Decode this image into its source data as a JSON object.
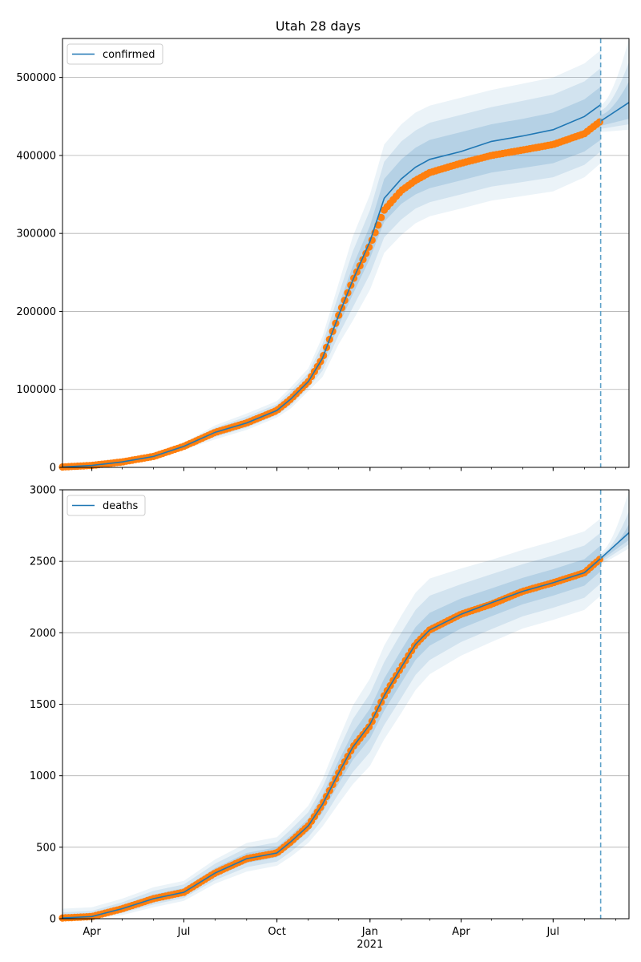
{
  "title": "Utah 28 days",
  "x_axis": {
    "ticks": [
      {
        "date": "2020-04-01",
        "label": "Apr",
        "sublabel": ""
      },
      {
        "date": "2020-07-01",
        "label": "Jul",
        "sublabel": ""
      },
      {
        "date": "2020-10-01",
        "label": "Oct",
        "sublabel": ""
      },
      {
        "date": "2021-01-01",
        "label": "Jan",
        "sublabel": "2021"
      },
      {
        "date": "2021-04-01",
        "label": "Apr",
        "sublabel": ""
      },
      {
        "date": "2021-07-01",
        "label": "Jul",
        "sublabel": ""
      }
    ],
    "range": [
      "2020-03-03",
      "2021-09-14"
    ],
    "forecast_start": "2021-08-17"
  },
  "colors": {
    "model_line": "#1f77b4",
    "band": "#1f77b4",
    "observed": "#ff7f0e",
    "forecast_marker": "#5fa2c9",
    "grid": "#b0b0b0"
  },
  "chart_data": [
    {
      "type": "line",
      "series_name": "confirmed",
      "ylim": [
        0,
        550000
      ],
      "yticks": [
        0,
        100000,
        200000,
        300000,
        400000,
        500000
      ],
      "grid": "horizontal",
      "legend_position": "upper-left",
      "model": {
        "x": [
          "2020-03-03",
          "2020-04-01",
          "2020-05-01",
          "2020-06-01",
          "2020-07-01",
          "2020-08-01",
          "2020-09-01",
          "2020-10-01",
          "2020-10-15",
          "2020-11-01",
          "2020-11-15",
          "2020-12-01",
          "2020-12-15",
          "2021-01-01",
          "2021-01-15",
          "2021-02-01",
          "2021-02-15",
          "2021-03-01",
          "2021-04-01",
          "2021-05-01",
          "2021-06-01",
          "2021-07-01",
          "2021-08-01",
          "2021-08-17"
        ],
        "y": [
          500,
          2500,
          7000,
          14000,
          27000,
          45000,
          57000,
          73000,
          88000,
          110000,
          140000,
          195000,
          240000,
          290000,
          345000,
          370000,
          385000,
          395000,
          405000,
          418000,
          425000,
          433000,
          450000,
          465000
        ]
      },
      "observed": {
        "x": [
          "2020-03-03",
          "2020-04-01",
          "2020-05-01",
          "2020-06-01",
          "2020-07-01",
          "2020-08-01",
          "2020-09-01",
          "2020-10-01",
          "2020-10-15",
          "2020-11-01",
          "2020-11-15",
          "2020-12-01",
          "2020-12-15",
          "2021-01-01",
          "2021-01-15",
          "2021-02-01",
          "2021-02-15",
          "2021-03-01",
          "2021-04-01",
          "2021-05-01",
          "2021-06-01",
          "2021-07-01",
          "2021-08-01",
          "2021-08-17"
        ],
        "y": [
          500,
          2500,
          7000,
          14000,
          27000,
          45000,
          57000,
          73000,
          88000,
          110000,
          140000,
          195000,
          240000,
          285000,
          330000,
          355000,
          368000,
          378000,
          390000,
          400000,
          407000,
          414000,
          428000,
          444000
        ]
      },
      "forecast": {
        "x": [
          "2021-08-17",
          "2021-09-14"
        ],
        "y": [
          444000,
          468000
        ],
        "bands": [
          {
            "lower": [
              438000,
              447000
            ],
            "upper": [
              452000,
              495000
            ]
          },
          {
            "lower": [
              434000,
              440000
            ],
            "upper": [
              458000,
              520000
            ]
          },
          {
            "lower": [
              430000,
              433000
            ],
            "upper": [
              465000,
              550000
            ]
          }
        ]
      },
      "bands": [
        {
          "lower": [
            400,
            2200,
            6500,
            13000,
            25500,
            42000,
            54000,
            70000,
            84000,
            106000,
            132000,
            182000,
            222000,
            268000,
            315000,
            338000,
            350000,
            358000,
            368000,
            378000,
            384000,
            390000,
            405000,
            420000
          ],
          "upper": [
            600,
            2800,
            7500,
            15000,
            28500,
            48000,
            61000,
            77000,
            93000,
            115000,
            148000,
            208000,
            258000,
            310000,
            370000,
            395000,
            410000,
            420000,
            430000,
            440000,
            447000,
            455000,
            472000,
            488000
          ]
        },
        {
          "lower": [
            300,
            1900,
            6000,
            12000,
            24000,
            39000,
            51000,
            67000,
            80000,
            102000,
            124000,
            170000,
            205000,
            248000,
            295000,
            318000,
            332000,
            340000,
            350000,
            360000,
            366000,
            372000,
            388000,
            405000
          ],
          "upper": [
            700,
            3100,
            8000,
            16000,
            30000,
            51000,
            65000,
            81000,
            98000,
            121000,
            158000,
            222000,
            277000,
            330000,
            392000,
            418000,
            432000,
            442000,
            452000,
            462000,
            470000,
            478000,
            495000,
            512000
          ]
        },
        {
          "lower": [
            200,
            1600,
            5500,
            11000,
            22500,
            36000,
            48000,
            64000,
            76000,
            98000,
            116000,
            158000,
            188000,
            228000,
            275000,
            298000,
            313000,
            322000,
            332000,
            342000,
            348000,
            354000,
            372000,
            390000
          ],
          "upper": [
            800,
            3400,
            8500,
            17000,
            31500,
            54000,
            69000,
            85000,
            103000,
            127000,
            168000,
            236000,
            296000,
            350000,
            414000,
            440000,
            455000,
            464000,
            474000,
            484000,
            492000,
            500000,
            518000,
            535000
          ]
        }
      ]
    },
    {
      "type": "line",
      "series_name": "deaths",
      "ylim": [
        0,
        3000
      ],
      "yticks": [
        0,
        500,
        1000,
        1500,
        2000,
        2500,
        3000
      ],
      "grid": "horizontal",
      "legend_position": "upper-left",
      "model": {
        "x": [
          "2020-03-03",
          "2020-04-01",
          "2020-05-01",
          "2020-06-01",
          "2020-07-01",
          "2020-08-01",
          "2020-09-01",
          "2020-10-01",
          "2020-10-15",
          "2020-11-01",
          "2020-11-15",
          "2020-12-01",
          "2020-12-15",
          "2021-01-01",
          "2021-01-15",
          "2021-02-01",
          "2021-02-15",
          "2021-03-01",
          "2021-04-01",
          "2021-05-01",
          "2021-06-01",
          "2021-07-01",
          "2021-08-01",
          "2021-08-17"
        ],
        "y": [
          5,
          15,
          70,
          140,
          185,
          320,
          420,
          460,
          540,
          650,
          800,
          1020,
          1200,
          1360,
          1560,
          1760,
          1920,
          2020,
          2130,
          2210,
          2290,
          2350,
          2420,
          2520
        ]
      },
      "observed": {
        "x": [
          "2020-03-03",
          "2020-04-01",
          "2020-05-01",
          "2020-06-01",
          "2020-07-01",
          "2020-08-01",
          "2020-09-01",
          "2020-10-01",
          "2020-10-15",
          "2020-11-01",
          "2020-11-15",
          "2020-12-01",
          "2020-12-15",
          "2021-01-01",
          "2021-01-15",
          "2021-02-01",
          "2021-02-15",
          "2021-03-01",
          "2021-04-01",
          "2021-05-01",
          "2021-06-01",
          "2021-07-01",
          "2021-08-01",
          "2021-08-17"
        ],
        "y": [
          5,
          15,
          70,
          140,
          185,
          320,
          420,
          460,
          540,
          650,
          800,
          1020,
          1200,
          1350,
          1560,
          1760,
          1920,
          2020,
          2130,
          2200,
          2290,
          2350,
          2420,
          2520
        ]
      },
      "forecast": {
        "x": [
          "2021-08-17",
          "2021-09-14"
        ],
        "y": [
          2520,
          2700
        ],
        "bands": [
          {
            "lower": [
              2505,
              2650
            ],
            "upper": [
              2535,
              2760
            ]
          },
          {
            "lower": [
              2490,
              2620
            ],
            "upper": [
              2550,
              2850
            ]
          },
          {
            "lower": [
              2475,
              2590
            ],
            "upper": [
              2565,
              3000
            ]
          }
        ]
      },
      "bands": [
        {
          "lower": [
            0,
            5,
            55,
            120,
            165,
            295,
            390,
            430,
            505,
            610,
            745,
            945,
            1110,
            1260,
            1455,
            1650,
            1810,
            1910,
            2030,
            2115,
            2200,
            2260,
            2330,
            2430
          ],
          "upper": [
            25,
            35,
            95,
            170,
            215,
            355,
            460,
            500,
            585,
            700,
            865,
            1105,
            1300,
            1470,
            1680,
            1880,
            2040,
            2140,
            2240,
            2310,
            2385,
            2445,
            2515,
            2610
          ]
        },
        {
          "lower": [
            0,
            0,
            40,
            100,
            145,
            270,
            360,
            400,
            470,
            570,
            695,
            875,
            1025,
            1165,
            1355,
            1545,
            1705,
            1810,
            1935,
            2025,
            2115,
            2175,
            2245,
            2345
          ],
          "upper": [
            45,
            55,
            115,
            195,
            240,
            385,
            495,
            535,
            625,
            745,
            920,
            1180,
            1395,
            1575,
            1795,
            2000,
            2160,
            2260,
            2340,
            2410,
            2480,
            2540,
            2610,
            2700
          ]
        },
        {
          "lower": [
            0,
            0,
            25,
            80,
            125,
            245,
            330,
            370,
            435,
            530,
            645,
            805,
            940,
            1070,
            1255,
            1440,
            1600,
            1710,
            1840,
            1935,
            2030,
            2090,
            2160,
            2260
          ],
          "upper": [
            70,
            80,
            140,
            220,
            265,
            415,
            530,
            570,
            665,
            790,
            975,
            1255,
            1490,
            1680,
            1910,
            2120,
            2280,
            2380,
            2450,
            2510,
            2580,
            2640,
            2710,
            2800
          ]
        }
      ]
    }
  ]
}
